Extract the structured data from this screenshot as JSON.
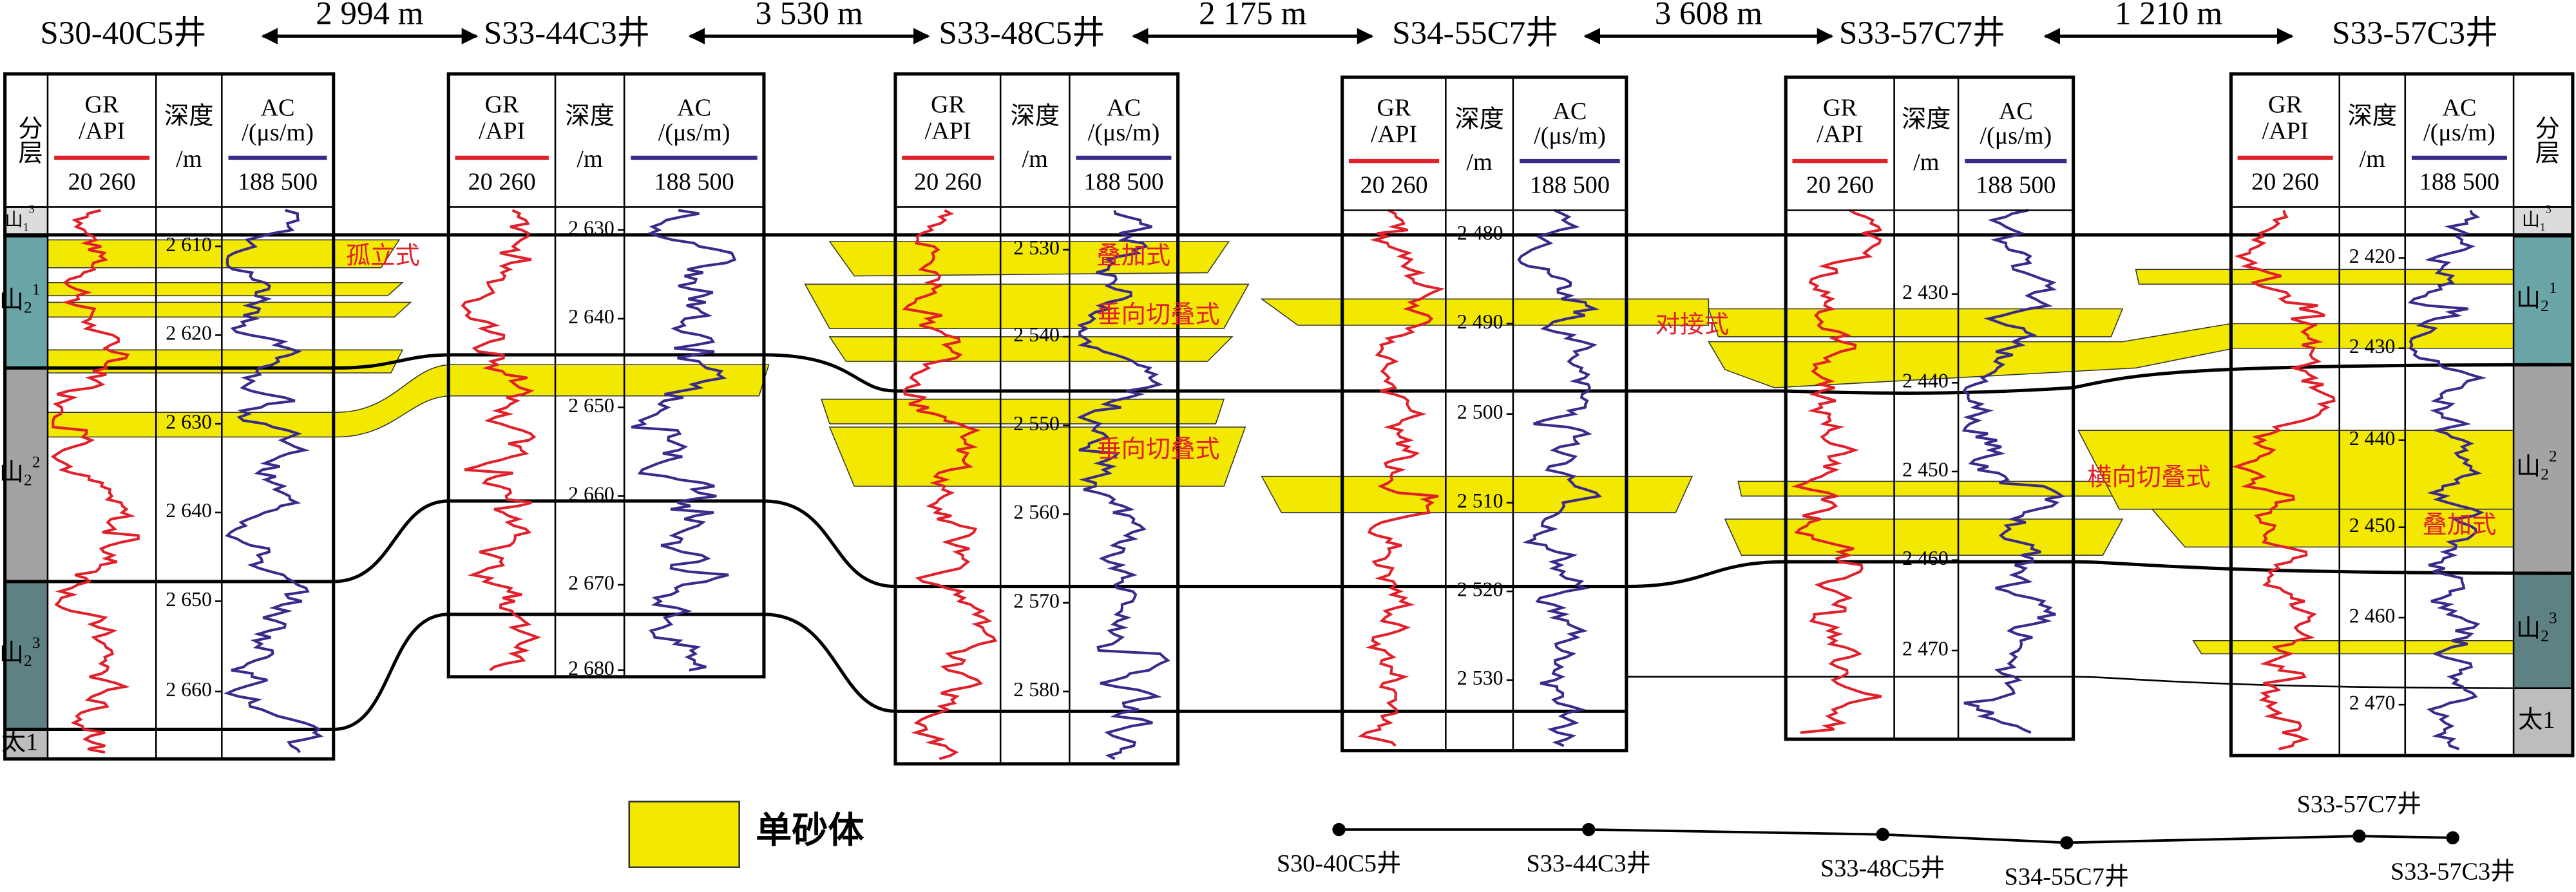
{
  "wells": [
    {
      "name": "S30-40C5井",
      "depths": [
        "2 610",
        "2 620",
        "2 630",
        "2 640",
        "2 650",
        "2 660"
      ]
    },
    {
      "name": "S33-44C3井",
      "depths": [
        "2 630",
        "2 640",
        "2 650",
        "2 660",
        "2 670",
        "2 680"
      ]
    },
    {
      "name": "S33-48C5井",
      "depths": [
        "2 530",
        "2 540",
        "2 550",
        "2 560",
        "2 570",
        "2 580"
      ]
    },
    {
      "name": "S34-55C7井",
      "depths": [
        "2 480",
        "2 490",
        "2 500",
        "2 510",
        "2 520",
        "2 530"
      ]
    },
    {
      "name": "S33-57C7井",
      "depths": [
        "2 430",
        "2 440",
        "2 450",
        "2 460",
        "2 470"
      ]
    },
    {
      "name": "S33-57C3井",
      "depths": [
        "2 420",
        "2 430",
        "2 440",
        "2 450",
        "2 460",
        "2 470"
      ]
    }
  ],
  "distances": [
    "2 994 m",
    "3 530 m",
    "2 175 m",
    "3 608 m",
    "1 210 m"
  ],
  "headers": {
    "layer": "分层",
    "gr": "GR",
    "gr_unit": "/API",
    "gr_scale": "20 260",
    "depth": "深度",
    "depth_unit": "/m",
    "ac": "AC",
    "ac_unit": "/(μs/m)",
    "ac_scale": "188 500"
  },
  "layers": [
    {
      "base": "山",
      "sub": "1",
      "sup": "3"
    },
    {
      "base": "山",
      "sub": "2",
      "sup": "1"
    },
    {
      "base": "山",
      "sub": "2",
      "sup": "2"
    },
    {
      "base": "山",
      "sub": "2",
      "sup": "3"
    },
    {
      "base": "太1"
    }
  ],
  "annotations": [
    "孤立式",
    "叠加式",
    "垂向切叠式",
    "垂向切叠式",
    "对接式",
    "横向切叠式",
    "叠加式"
  ],
  "legend": "单砂体",
  "map_labels": [
    "S30-40C5井",
    "S33-44C3井",
    "S33-48C5井",
    "S34-55C7井",
    "S33-57C7井",
    "S33-57C3井"
  ]
}
